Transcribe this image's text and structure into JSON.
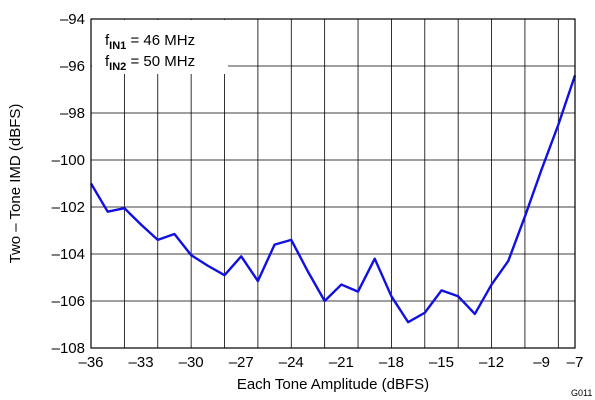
{
  "chart_data": {
    "type": "line",
    "xlabel": "Each Tone Amplitude (dBFS)",
    "ylabel": "Two – Tone IMD (dBFS)",
    "xlim": [
      -36,
      -7
    ],
    "ylim": [
      -108,
      -94
    ],
    "xticks": [
      -36,
      -33,
      -30,
      -27,
      -24,
      -21,
      -18,
      -15,
      -12,
      -9,
      -7
    ],
    "xtick_labels": [
      "–36",
      "–33",
      "–30",
      "–27",
      "–24",
      "–21",
      "–18",
      "–15",
      "–12",
      "–9",
      "–7"
    ],
    "yticks": [
      -108,
      -106,
      -104,
      -102,
      -100,
      -98,
      -96,
      -94
    ],
    "ytick_labels": [
      "–108",
      "–106",
      "–104",
      "–102",
      "–100",
      "–98",
      "–96",
      "–94"
    ],
    "xgrid": [
      -36,
      -34,
      -32,
      -30,
      -28,
      -26,
      -24,
      -22,
      -20,
      -18,
      -16,
      -14,
      -12,
      -10,
      -8
    ],
    "grid": true,
    "legend": {
      "placement": "top-left",
      "lines": [
        {
          "prefix": "f",
          "sub": "IN1",
          "rest": " = 46 MHz"
        },
        {
          "prefix": "f",
          "sub": "IN2",
          "rest": " = 50 MHz"
        }
      ]
    },
    "figure_id": "G011",
    "series": [
      {
        "color": "#1010e0",
        "x": [
          -36,
          -35,
          -34,
          -33,
          -32,
          -31,
          -30,
          -29,
          -28,
          -27,
          -26,
          -25,
          -24,
          -23,
          -22,
          -21,
          -20,
          -19,
          -18,
          -17,
          -16,
          -15,
          -14,
          -13,
          -12,
          -11,
          -10,
          -9,
          -8,
          -7
        ],
        "y": [
          -101.0,
          -102.2,
          -102.05,
          -102.75,
          -103.4,
          -103.15,
          -104.05,
          -104.5,
          -104.9,
          -104.1,
          -105.15,
          -103.6,
          -103.4,
          -104.75,
          -106.0,
          -105.3,
          -105.6,
          -104.2,
          -105.8,
          -106.9,
          -106.5,
          -105.55,
          -105.8,
          -106.55,
          -105.3,
          -104.3,
          -102.4,
          -100.4,
          -98.5,
          -96.4
        ]
      }
    ]
  }
}
